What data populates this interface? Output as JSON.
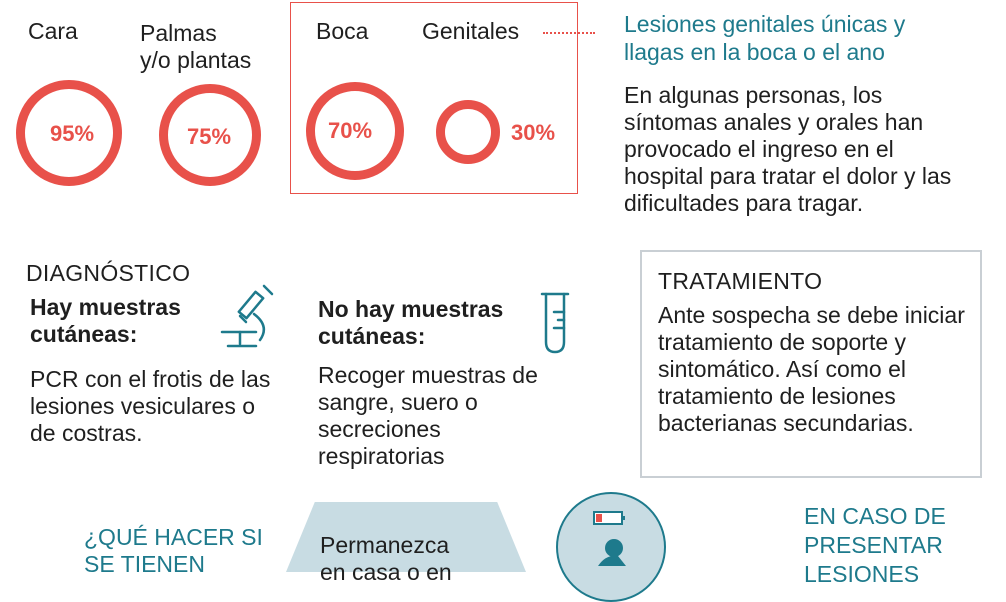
{
  "regions": [
    {
      "label": "Cara",
      "percent": "95%",
      "value": 95
    },
    {
      "label": "Palmas\ny/o plantas",
      "percent": "75%",
      "value": 75
    },
    {
      "label": "Boca",
      "percent": "70%",
      "value": 70
    },
    {
      "label": "Genitales",
      "percent": "30%",
      "value": 30
    }
  ],
  "callout": {
    "title": "Lesiones genitales únicas y llagas en la boca o el ano",
    "text": "En algunas personas, los síntomas anales y orales han provocado el ingreso en el hospital para tratar el dolor y las dificultades para tragar."
  },
  "diagnostico": {
    "heading": "DIAGNÓSTICO",
    "with_samples": {
      "title": "Hay muestras cutáneas:",
      "text": "PCR con el frotis de las lesiones vesiculares o de costras.",
      "icon": "microscope-icon"
    },
    "without_samples": {
      "title": "No hay muestras cutáneas:",
      "text": "Recoger muestras de sangre, suero o secreciones respiratorias",
      "icon": "test-tube-icon"
    }
  },
  "tratamiento": {
    "heading": "TRATAMIENTO",
    "text": "Ante sospecha se debe iniciar tratamiento de soporte y sintomático. Así como el tratamiento de lesiones bacterianas secundarias."
  },
  "bottom": {
    "que_hacer": "¿QUÉ HACER SI SE TIENEN",
    "permanezca": "Permanezca en casa o en",
    "en_caso": "EN CASO DE PRESENTAR LESIONES"
  },
  "colors": {
    "accent": "#e8514a",
    "teal": "#1e7a8c",
    "box_border": "#c9cfd4",
    "trap": "#c8dce3"
  }
}
